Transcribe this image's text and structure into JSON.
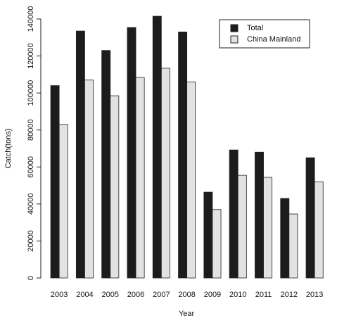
{
  "chart_data": {
    "type": "bar",
    "x_label": "Year",
    "y_label": "Catch(tons)",
    "categories": [
      "2003",
      "2004",
      "2005",
      "2006",
      "2007",
      "2008",
      "2009",
      "2010",
      "2011",
      "2012",
      "2013"
    ],
    "series": [
      {
        "name": "Total",
        "color": "#1c1c1c",
        "values": [
          104000,
          133500,
          123000,
          135400,
          141500,
          133000,
          46400,
          69200,
          68000,
          43000,
          65000
        ]
      },
      {
        "name": "China Mainland",
        "color": "#e2e2e2",
        "values": [
          83000,
          107000,
          98500,
          108400,
          113400,
          106000,
          37000,
          55500,
          54400,
          34600,
          52000
        ]
      }
    ],
    "ylim": [
      0,
      140000
    ],
    "yticks": [
      0,
      20000,
      40000,
      60000,
      80000,
      100000,
      120000,
      140000
    ],
    "legend": "top-right"
  }
}
